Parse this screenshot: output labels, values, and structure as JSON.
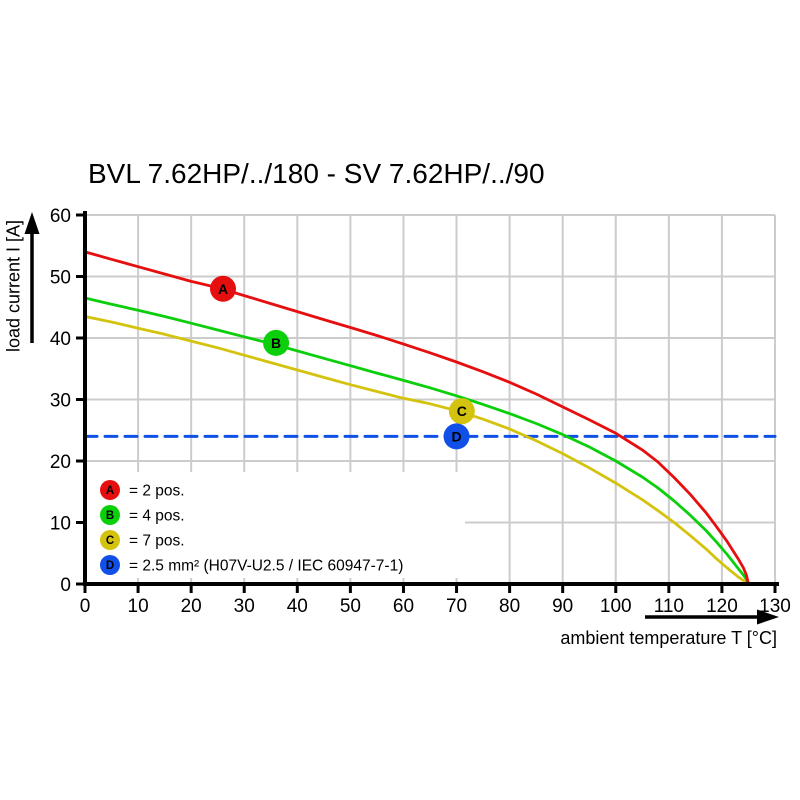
{
  "chart_data": {
    "type": "line",
    "title": "BVL 7.62HP/../180 - SV 7.62HP/../90",
    "xlabel": "ambient temperature T [°C]",
    "ylabel": "load current I [A]",
    "xlim": [
      0,
      130
    ],
    "ylim": [
      0,
      60
    ],
    "x_ticks": [
      0,
      10,
      20,
      30,
      40,
      50,
      60,
      70,
      80,
      90,
      100,
      110,
      120,
      130
    ],
    "y_ticks": [
      0,
      10,
      20,
      30,
      40,
      50,
      60
    ],
    "grid": true,
    "legend_position": "lower-left-inside",
    "colors": {
      "grid": "#cccccc",
      "axis": "#000000",
      "background": "#ffffff",
      "red": "#e60f0f",
      "green": "#0ccf0c",
      "yellow": "#d4c30e",
      "blue": "#1050e8"
    },
    "series": [
      {
        "name": "A",
        "legend_label": "= 2 pos.",
        "color": "#e60f0f",
        "style": "solid",
        "marker": {
          "letter": "A",
          "x": 26,
          "y": 48
        },
        "points": [
          [
            0,
            54
          ],
          [
            5,
            52.8
          ],
          [
            10,
            51.6
          ],
          [
            15,
            50.4
          ],
          [
            20,
            49.2
          ],
          [
            25,
            48.2
          ],
          [
            30,
            46.9
          ],
          [
            35,
            45.6
          ],
          [
            40,
            44.3
          ],
          [
            45,
            43.0
          ],
          [
            50,
            41.7
          ],
          [
            55,
            40.4
          ],
          [
            60,
            39.0
          ],
          [
            65,
            37.6
          ],
          [
            70,
            36.1
          ],
          [
            75,
            34.5
          ],
          [
            80,
            32.8
          ],
          [
            85,
            30.9
          ],
          [
            90,
            28.8
          ],
          [
            95,
            26.7
          ],
          [
            100,
            24.5
          ],
          [
            105,
            21.8
          ],
          [
            108,
            19.8
          ],
          [
            111,
            17.3
          ],
          [
            114,
            14.6
          ],
          [
            117,
            11.6
          ],
          [
            119,
            9.3
          ],
          [
            121,
            6.9
          ],
          [
            123,
            4.2
          ],
          [
            124,
            2.7
          ],
          [
            124.6,
            1.5
          ],
          [
            125,
            0
          ]
        ]
      },
      {
        "name": "B",
        "legend_label": "= 4 pos.",
        "color": "#0ccf0c",
        "style": "solid",
        "marker": {
          "letter": "B",
          "x": 36,
          "y": 39.2
        },
        "points": [
          [
            0,
            46.5
          ],
          [
            5,
            45.5
          ],
          [
            10,
            44.5
          ],
          [
            15,
            43.5
          ],
          [
            20,
            42.4
          ],
          [
            25,
            41.3
          ],
          [
            30,
            40.2
          ],
          [
            35,
            39.1
          ],
          [
            40,
            37.9
          ],
          [
            45,
            36.7
          ],
          [
            50,
            35.5
          ],
          [
            55,
            34.3
          ],
          [
            60,
            33.1
          ],
          [
            65,
            31.9
          ],
          [
            70,
            30.6
          ],
          [
            75,
            29.2
          ],
          [
            80,
            27.7
          ],
          [
            85,
            26.1
          ],
          [
            90,
            24.3
          ],
          [
            95,
            22.3
          ],
          [
            100,
            20.0
          ],
          [
            105,
            17.4
          ],
          [
            108,
            15.6
          ],
          [
            111,
            13.5
          ],
          [
            114,
            11.2
          ],
          [
            117,
            8.7
          ],
          [
            119,
            6.8
          ],
          [
            121,
            4.8
          ],
          [
            123,
            2.6
          ],
          [
            124,
            1.5
          ],
          [
            124.6,
            0.8
          ],
          [
            125,
            0
          ]
        ]
      },
      {
        "name": "C",
        "legend_label": "= 7 pos.",
        "color": "#d4c30e",
        "style": "solid",
        "marker": {
          "letter": "C",
          "x": 71,
          "y": 28.1
        },
        "points": [
          [
            0,
            43.5
          ],
          [
            5,
            42.6
          ],
          [
            10,
            41.6
          ],
          [
            15,
            40.6
          ],
          [
            20,
            39.5
          ],
          [
            25,
            38.4
          ],
          [
            30,
            37.2
          ],
          [
            35,
            36.0
          ],
          [
            40,
            34.8
          ],
          [
            45,
            33.6
          ],
          [
            50,
            32.4
          ],
          [
            55,
            31.3
          ],
          [
            60,
            30.2
          ],
          [
            65,
            29.3
          ],
          [
            70,
            28.2
          ],
          [
            75,
            26.8
          ],
          [
            80,
            25.2
          ],
          [
            85,
            23.3
          ],
          [
            90,
            21.2
          ],
          [
            95,
            18.9
          ],
          [
            100,
            16.4
          ],
          [
            105,
            13.7
          ],
          [
            108,
            11.9
          ],
          [
            111,
            10.0
          ],
          [
            114,
            7.9
          ],
          [
            117,
            5.7
          ],
          [
            119,
            4.1
          ],
          [
            121,
            2.6
          ],
          [
            123,
            1.2
          ],
          [
            124,
            0.6
          ],
          [
            125,
            0
          ]
        ]
      },
      {
        "name": "D",
        "legend_label": "= 2.5 mm² (H07V-U2.5 / IEC 60947-7-1)",
        "color": "#1050e8",
        "style": "dashed",
        "marker": {
          "letter": "D",
          "x": 70,
          "y": 24
        },
        "points": [
          [
            0,
            24
          ],
          [
            130,
            24
          ]
        ]
      }
    ]
  }
}
